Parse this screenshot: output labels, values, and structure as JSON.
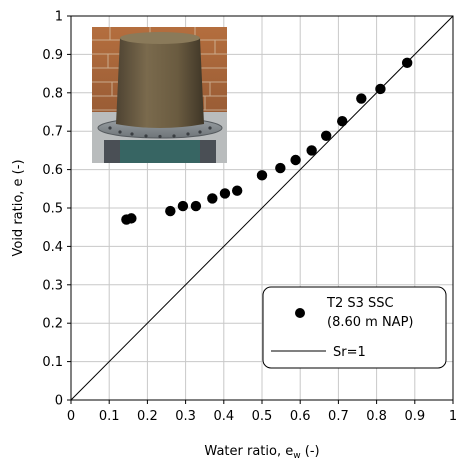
{
  "chart_data": {
    "type": "scatter",
    "title": "",
    "xlabel": "Water ratio, e",
    "xlabel_sub": "w",
    "xlabel_suffix": " (-)",
    "ylabel": "Void ratio, e (-)",
    "xlim": [
      0,
      1
    ],
    "ylim": [
      0,
      1
    ],
    "xticks": [
      0,
      0.1,
      0.2,
      0.3,
      0.4,
      0.5,
      0.6,
      0.7,
      0.8,
      0.9,
      1
    ],
    "yticks": [
      0,
      0.1,
      0.2,
      0.3,
      0.4,
      0.5,
      0.6,
      0.7,
      0.8,
      0.9,
      1
    ],
    "xtick_labels": [
      "0",
      "0.1",
      "0.2",
      "0.3",
      "0.4",
      "0.5",
      "0.6",
      "0.7",
      "0.8",
      "0.9",
      "1"
    ],
    "ytick_labels": [
      "0",
      "0.1",
      "0.2",
      "0.3",
      "0.4",
      "0.5",
      "0.6",
      "0.7",
      "0.8",
      "0.9",
      "1"
    ],
    "grid": true,
    "legend_position": "bottom-right",
    "series": [
      {
        "name": "T2 S3 SSC",
        "name_line2": "(8.60 m NAP)",
        "kind": "markers",
        "color": "#000000",
        "x": [
          0.145,
          0.158,
          0.26,
          0.293,
          0.327,
          0.37,
          0.403,
          0.435,
          0.5,
          0.548,
          0.588,
          0.63,
          0.668,
          0.71,
          0.76,
          0.81,
          0.88
        ],
        "y": [
          0.47,
          0.473,
          0.492,
          0.505,
          0.505,
          0.525,
          0.538,
          0.545,
          0.585,
          0.604,
          0.625,
          0.65,
          0.688,
          0.726,
          0.785,
          0.81,
          0.878
        ]
      },
      {
        "name": "Sr=1",
        "kind": "line",
        "color": "#000000",
        "x": [
          0,
          1
        ],
        "y": [
          0,
          1
        ]
      }
    ]
  }
}
